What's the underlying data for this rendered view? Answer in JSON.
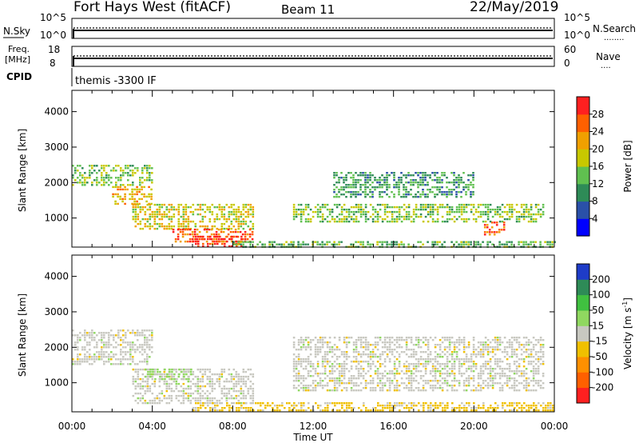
{
  "header": {
    "radar": "Fort Hays West (fitACF)",
    "beam": "Beam 11",
    "date": "22/May/2019"
  },
  "nsky_panel": {
    "left_label": "N.Sky",
    "right_label": "N.Search",
    "right_legend": "........",
    "left_ticks": [
      "10^5",
      "10^0"
    ],
    "right_ticks": [
      "10^5",
      "10^0"
    ]
  },
  "freq_panel": {
    "left_label_1": "Freq.",
    "left_label_2": "[MHz]",
    "right_label": "Nave",
    "right_legend": "....",
    "left_ticks": [
      "18",
      "8"
    ],
    "right_ticks": [
      "60",
      "0"
    ]
  },
  "cpid": {
    "label": "CPID",
    "value": "themis -3300 IF"
  },
  "axes": {
    "ylabel": "Slant Range [km]",
    "xlabel": "Time UT",
    "y_ticks": [
      "1000",
      "2000",
      "3000",
      "4000"
    ],
    "x_ticks": [
      "00:00",
      "04:00",
      "08:00",
      "12:00",
      "16:00",
      "20:00",
      "00:00"
    ]
  },
  "power_colorbar": {
    "label": "Power [dB]",
    "ticks": [
      "4",
      "8",
      "12",
      "16",
      "20",
      "24",
      "28"
    ],
    "colors": [
      "#0000ff",
      "#2a50a8",
      "#2e8b57",
      "#60c050",
      "#c8c800",
      "#f0a000",
      "#ff6000",
      "#ff2020"
    ]
  },
  "velocity_colorbar": {
    "label_main": "Velocity [m s",
    "label_sup": "-1",
    "label_end": "]",
    "ticks": [
      "200",
      "100",
      "50",
      "15",
      "-15",
      "-50",
      "-100",
      "-200"
    ],
    "colors": [
      "#1e3cc8",
      "#2e8b57",
      "#40c040",
      "#90d860",
      "#c8c8c0",
      "#f0c000",
      "#ff9000",
      "#ff6000",
      "#ff2020"
    ]
  },
  "chart_data": [
    {
      "type": "heatmap",
      "name": "power",
      "xlabel": "Time UT",
      "ylabel": "Slant Range [km]",
      "xlim": [
        0,
        24
      ],
      "ylim": [
        180,
        4600
      ],
      "clim": [
        0,
        30
      ],
      "regions": [
        {
          "t": [
            0,
            4
          ],
          "r": [
            1900,
            2500
          ],
          "v": 14
        },
        {
          "t": [
            2,
            4
          ],
          "r": [
            1400,
            1900
          ],
          "v": 20
        },
        {
          "t": [
            3,
            9
          ],
          "r": [
            700,
            1400
          ],
          "v": 18
        },
        {
          "t": [
            5,
            9
          ],
          "r": [
            300,
            700
          ],
          "v": 26
        },
        {
          "t": [
            6,
            8.5
          ],
          "r": [
            200,
            500
          ],
          "v": 28
        },
        {
          "t": [
            8,
            24
          ],
          "r": [
            200,
            350
          ],
          "v": 12
        },
        {
          "t": [
            11,
            23.5
          ],
          "r": [
            900,
            1400
          ],
          "v": 14
        },
        {
          "t": [
            13,
            20
          ],
          "r": [
            1600,
            2300
          ],
          "v": 10
        },
        {
          "t": [
            20.5,
            21.5
          ],
          "r": [
            500,
            900
          ],
          "v": 26
        }
      ]
    },
    {
      "type": "heatmap",
      "name": "velocity",
      "xlabel": "Time UT",
      "ylabel": "Slant Range [km]",
      "xlim": [
        0,
        24
      ],
      "ylim": [
        180,
        4600
      ],
      "clim": [
        -200,
        200
      ],
      "regions": [
        {
          "t": [
            0,
            4
          ],
          "r": [
            1500,
            2500
          ],
          "v": 0
        },
        {
          "t": [
            3,
            9
          ],
          "r": [
            400,
            1400
          ],
          "v": 0
        },
        {
          "t": [
            3.5,
            6
          ],
          "r": [
            1100,
            1400
          ],
          "v": 40
        },
        {
          "t": [
            6,
            24
          ],
          "r": [
            200,
            450
          ],
          "v": -40
        },
        {
          "t": [
            11,
            23.5
          ],
          "r": [
            800,
            2300
          ],
          "v": 0
        }
      ]
    }
  ]
}
